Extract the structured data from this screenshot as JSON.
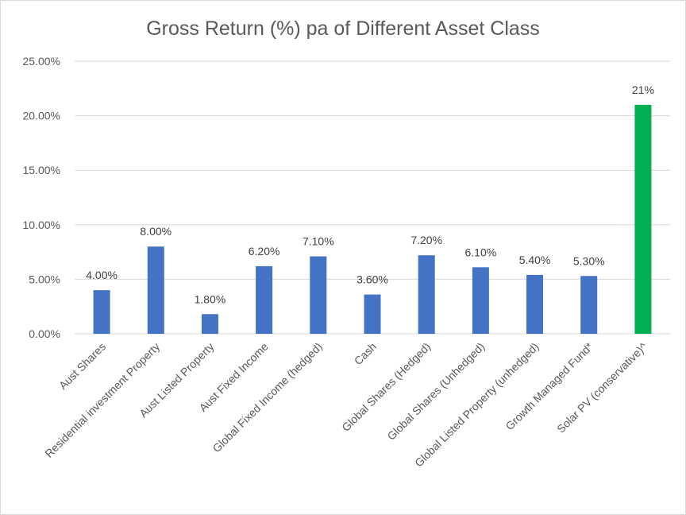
{
  "chart_data": {
    "type": "bar",
    "title": "Gross Return (%) pa of Different Asset Class",
    "xlabel": "",
    "ylabel": "",
    "ylim": [
      0,
      25
    ],
    "yticks": [
      "0.00%",
      "5.00%",
      "10.00%",
      "15.00%",
      "20.00%",
      "25.00%"
    ],
    "grid": true,
    "legend": "none",
    "categories": [
      "Aust Shares",
      "Residential investment Property",
      "Aust Listed Property",
      "Aust Fixed Income",
      "Global Fixed Income (hedged)",
      "Cash",
      "Global Shares (Hedged)",
      "Global Shares (Unhedged)",
      "Global Listed Property (unhedged)",
      "Growth Managed Fund*",
      "Solar PV (conservative)^"
    ],
    "values": [
      4.0,
      8.0,
      1.8,
      6.2,
      7.1,
      3.6,
      7.2,
      6.1,
      5.4,
      5.3,
      21
    ],
    "data_labels": [
      "4.00%",
      "8.00%",
      "1.80%",
      "6.20%",
      "7.10%",
      "3.60%",
      "7.20%",
      "6.10%",
      "5.40%",
      "5.30%",
      "21%"
    ],
    "colors": [
      "#4472c4",
      "#4472c4",
      "#4472c4",
      "#4472c4",
      "#4472c4",
      "#4472c4",
      "#4472c4",
      "#4472c4",
      "#4472c4",
      "#4472c4",
      "#00b050"
    ]
  }
}
